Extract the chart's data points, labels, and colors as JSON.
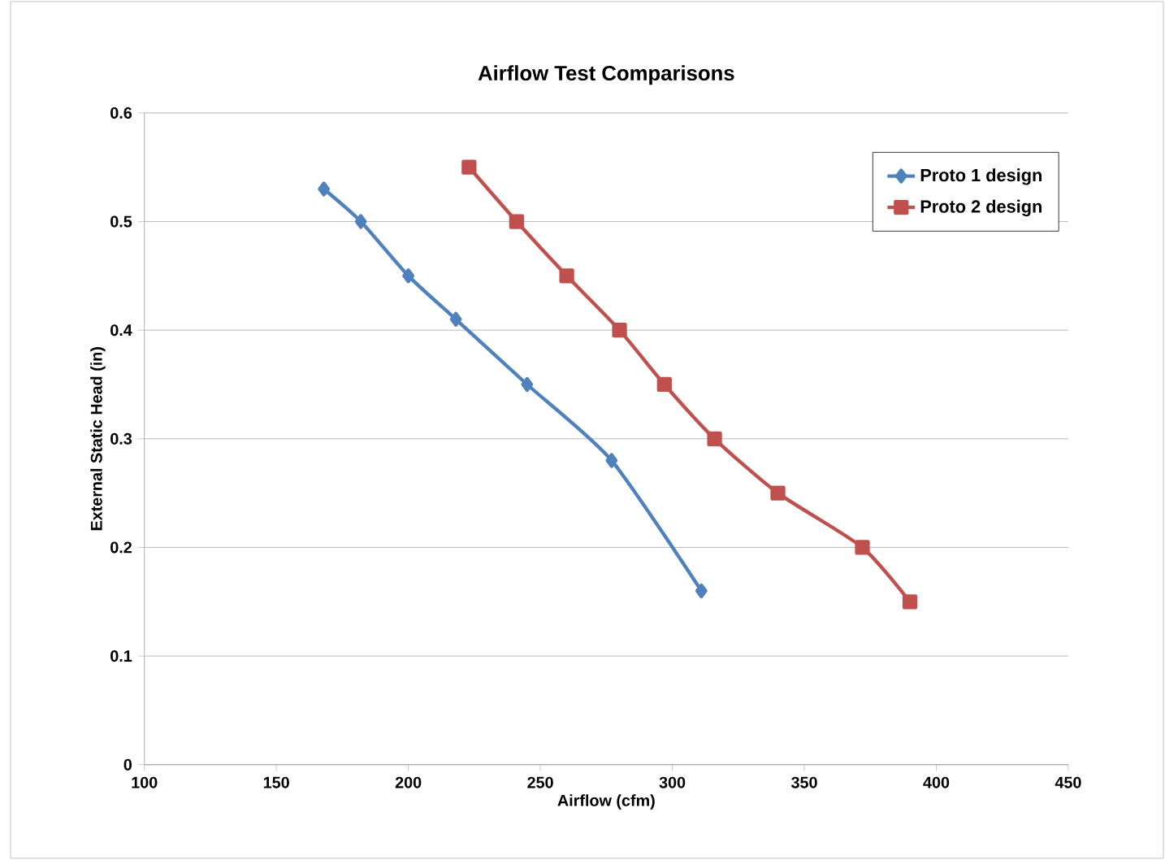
{
  "chart_data": {
    "type": "line",
    "title": "Airflow Test Comparisons",
    "xlabel": "Airflow (cfm)",
    "ylabel": "External Static Head (in)",
    "xlim": [
      100,
      450
    ],
    "xticks": [
      100,
      150,
      200,
      250,
      300,
      350,
      400,
      450
    ],
    "ylim": [
      0,
      0.6
    ],
    "yticks": [
      0,
      0.1,
      0.2,
      0.3,
      0.4,
      0.5,
      0.6
    ],
    "grid": "y",
    "legend": "top right",
    "series": [
      {
        "name": "Proto 1 design",
        "color": "#4f81bd",
        "marker": "diamond",
        "x": [
          168,
          182,
          200,
          218,
          245,
          277,
          311
        ],
        "values": [
          0.53,
          0.5,
          0.45,
          0.41,
          0.35,
          0.28,
          0.16
        ]
      },
      {
        "name": "Proto 2 design",
        "color": "#c0504d",
        "marker": "square",
        "x": [
          223,
          241,
          260,
          280,
          297,
          316,
          340,
          372,
          390
        ],
        "values": [
          0.55,
          0.5,
          0.45,
          0.4,
          0.35,
          0.3,
          0.25,
          0.2,
          0.15
        ]
      }
    ]
  }
}
